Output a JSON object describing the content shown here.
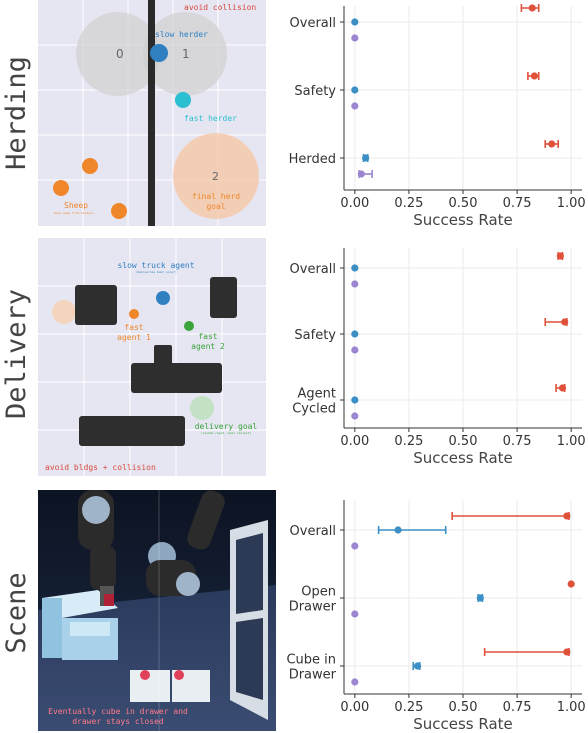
{
  "rows": [
    {
      "label": "Herding",
      "scene": {
        "labels": {
          "avoid": "avoid collision",
          "slow": "slow herder",
          "fast": "fast herder",
          "sheep": "Sheep",
          "sheep_sub": "move away from herders",
          "goal": "final herd\ngoal",
          "zone0": "0",
          "zone1": "1",
          "zone2": "2"
        }
      }
    },
    {
      "label": "Delivery",
      "scene": {
        "labels": {
          "slow": "slow truck agent",
          "slow_sub": "(deliveries must occur)",
          "fast1": "fast\nagent 1",
          "fast2": "fast\nagent 2",
          "goal": "delivery goal",
          "goal_sub": "(random reset, must revisit)",
          "avoid": "avoid bldgs + collision"
        }
      }
    },
    {
      "label": "Scene",
      "scene": {
        "caption": "Eventually cube in drawer and\ndrawer stays closed"
      }
    }
  ],
  "chart_data": [
    {
      "type": "dot-errorbar",
      "xlabel": "Success Rate",
      "xlim": [
        -0.05,
        1.05
      ],
      "xticks": [
        "0.00",
        "0.25",
        "0.50",
        "0.75",
        "1.00"
      ],
      "categories": [
        "Overall",
        "Safety",
        "Herded"
      ],
      "series": [
        {
          "color": "#e0513a",
          "values": [
            0.82,
            0.83,
            0.91
          ],
          "err_lo": [
            0.77,
            0.8,
            0.88
          ],
          "err_hi": [
            0.85,
            0.85,
            0.94
          ]
        },
        {
          "color": "#3c8fc4",
          "values": [
            0.0,
            0.0,
            0.05
          ],
          "err_lo": [
            0.0,
            0.0,
            0.04
          ],
          "err_hi": [
            0.0,
            0.0,
            0.06
          ]
        },
        {
          "color": "#9b86cf",
          "values": [
            0.0,
            0.0,
            0.03
          ],
          "err_lo": [
            0.0,
            0.0,
            0.02
          ],
          "err_hi": [
            0.0,
            0.0,
            0.08
          ]
        }
      ]
    },
    {
      "type": "dot-errorbar",
      "xlabel": "Success Rate",
      "xlim": [
        -0.05,
        1.05
      ],
      "xticks": [
        "0.00",
        "0.25",
        "0.50",
        "0.75",
        "1.00"
      ],
      "categories": [
        "Overall",
        "Safety",
        "Agent\nCycled"
      ],
      "series": [
        {
          "color": "#e0513a",
          "values": [
            0.95,
            0.97,
            0.96
          ],
          "err_lo": [
            0.94,
            0.88,
            0.93
          ],
          "err_hi": [
            0.96,
            0.98,
            0.97
          ]
        },
        {
          "color": "#3c8fc4",
          "values": [
            0.0,
            0.0,
            0.0
          ],
          "err_lo": [
            0.0,
            0.0,
            0.0
          ],
          "err_hi": [
            0.0,
            0.0,
            0.0
          ]
        },
        {
          "color": "#9b86cf",
          "values": [
            0.0,
            0.0,
            0.0
          ],
          "err_lo": [
            0.0,
            0.0,
            0.0
          ],
          "err_hi": [
            0.0,
            0.0,
            0.0
          ]
        }
      ]
    },
    {
      "type": "dot-errorbar",
      "xlabel": "Success Rate",
      "xlim": [
        -0.05,
        1.05
      ],
      "xticks": [
        "0.00",
        "0.25",
        "0.50",
        "0.75",
        "1.00"
      ],
      "categories": [
        "Overall",
        "Open\nDrawer",
        "Cube in\nDrawer"
      ],
      "series": [
        {
          "color": "#e0513a",
          "values": [
            0.98,
            1.0,
            0.98
          ],
          "err_lo": [
            0.45,
            1.0,
            0.6
          ],
          "err_hi": [
            0.99,
            1.0,
            0.99
          ]
        },
        {
          "color": "#3c8fc4",
          "values": [
            0.2,
            0.58,
            0.29
          ],
          "err_lo": [
            0.11,
            0.57,
            0.27
          ],
          "err_hi": [
            0.42,
            0.59,
            0.3
          ]
        },
        {
          "color": "#9b86cf",
          "values": [
            0.0,
            0.0,
            0.0
          ],
          "err_lo": [
            0.0,
            0.0,
            0.0
          ],
          "err_hi": [
            0.0,
            0.0,
            0.0
          ]
        }
      ]
    }
  ]
}
